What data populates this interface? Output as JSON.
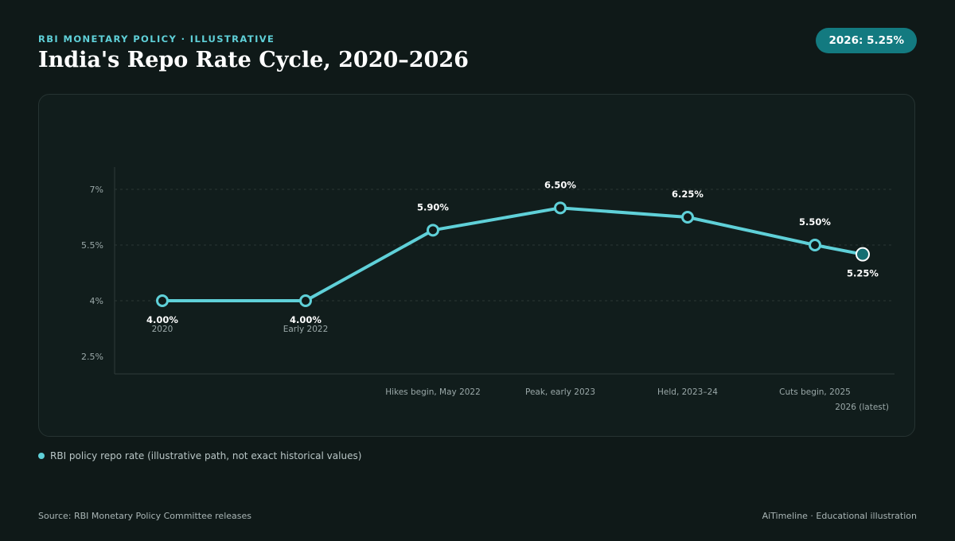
{
  "header": {
    "kicker": "RBI MONETARY POLICY · ILLUSTRATIVE",
    "title": "India's Repo Rate Cycle, 2020–2026",
    "badge": "2026: 5.25%"
  },
  "legend": {
    "label": "RBI policy repo rate (illustrative path, not exact historical values)"
  },
  "footer": {
    "source": "Source: RBI Monetary Policy Committee releases",
    "credit": "AiTimeline · Educational illustration"
  },
  "colors": {
    "line": "#5fd0d8",
    "accent_badge": "#137a80",
    "background": "#0f1918",
    "panel": "#111d1c",
    "grid": "#2a3635",
    "text_muted": "#9aa8a8"
  },
  "chart_data": {
    "type": "line",
    "title": "India's Repo Rate Cycle, 2020–2026",
    "xlabel": "",
    "ylabel": "",
    "ylim": [
      2.5,
      7.7
    ],
    "yticks": [
      {
        "value": 2.5,
        "label": "2.5%"
      },
      {
        "value": 4,
        "label": "4%"
      },
      {
        "value": 5.5,
        "label": "5.5%"
      },
      {
        "value": 7,
        "label": "7%"
      }
    ],
    "grid": true,
    "legend_position": "bottom-left",
    "categories": [
      "2020",
      "Early 2022",
      "Hikes begin, May 2022",
      "Peak, early 2023",
      "Held, 2023–24",
      "Cuts begin, 2025",
      "2026 (latest)"
    ],
    "series": [
      {
        "name": "RBI policy repo rate (illustrative path, not exact historical values)",
        "values": [
          4.0,
          4.0,
          5.9,
          6.5,
          6.25,
          5.5,
          5.25
        ],
        "data_labels": [
          "4.00%",
          "4.00%",
          "5.90%",
          "6.50%",
          "6.25%",
          "5.50%",
          "5.25%"
        ]
      }
    ]
  }
}
